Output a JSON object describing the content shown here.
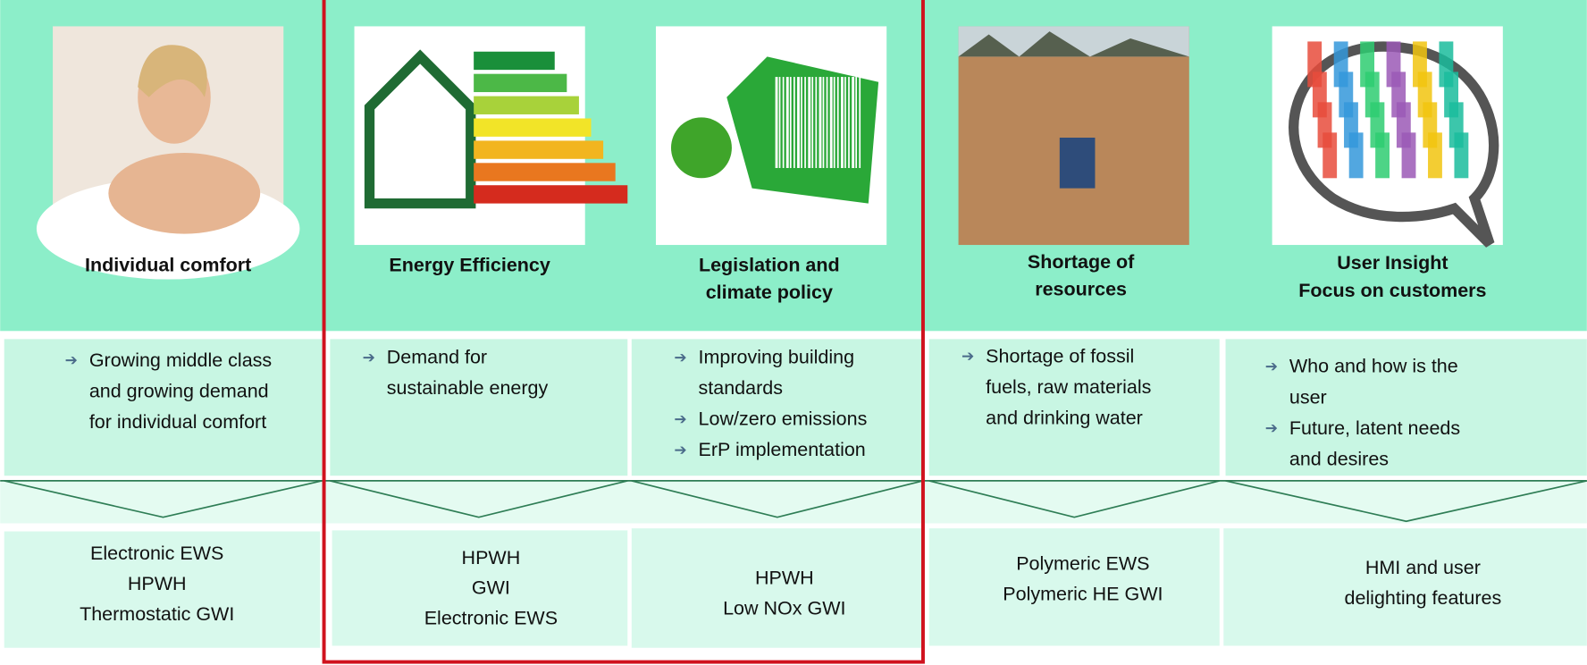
{
  "columns": [
    {
      "title": [
        "Individual comfort"
      ],
      "bullets": [
        [
          "Growing middle class",
          "and growing demand",
          "for individual comfort"
        ]
      ],
      "outcomes": [
        "Electronic EWS",
        "HPWH",
        "Thermostatic GWI"
      ]
    },
    {
      "title": [
        "Energy Efficiency"
      ],
      "bullets": [
        [
          "Demand for",
          "sustainable energy"
        ]
      ],
      "outcomes": [
        "HPWH",
        "GWI",
        "Electronic EWS"
      ]
    },
    {
      "title": [
        "Legislation and",
        "climate policy"
      ],
      "bullets": [
        [
          "Improving building",
          "standards"
        ],
        [
          "Low/zero emissions"
        ],
        [
          "ErP implementation"
        ]
      ],
      "outcomes": [
        "HPWH",
        "Low NOx GWI"
      ]
    },
    {
      "title": [
        "Shortage of",
        "resources"
      ],
      "bullets": [
        [
          "Shortage of fossil",
          "fuels, raw materials",
          "and drinking water"
        ]
      ],
      "outcomes": [
        "Polymeric EWS",
        "Polymeric HE GWI"
      ]
    },
    {
      "title": [
        "User Insight",
        "Focus on customers"
      ],
      "bullets": [
        [
          "Who and how is the",
          "user"
        ],
        [
          "Future, latent needs",
          "and desires"
        ]
      ],
      "outcomes": [
        "HMI and user",
        "delighting features"
      ]
    }
  ]
}
